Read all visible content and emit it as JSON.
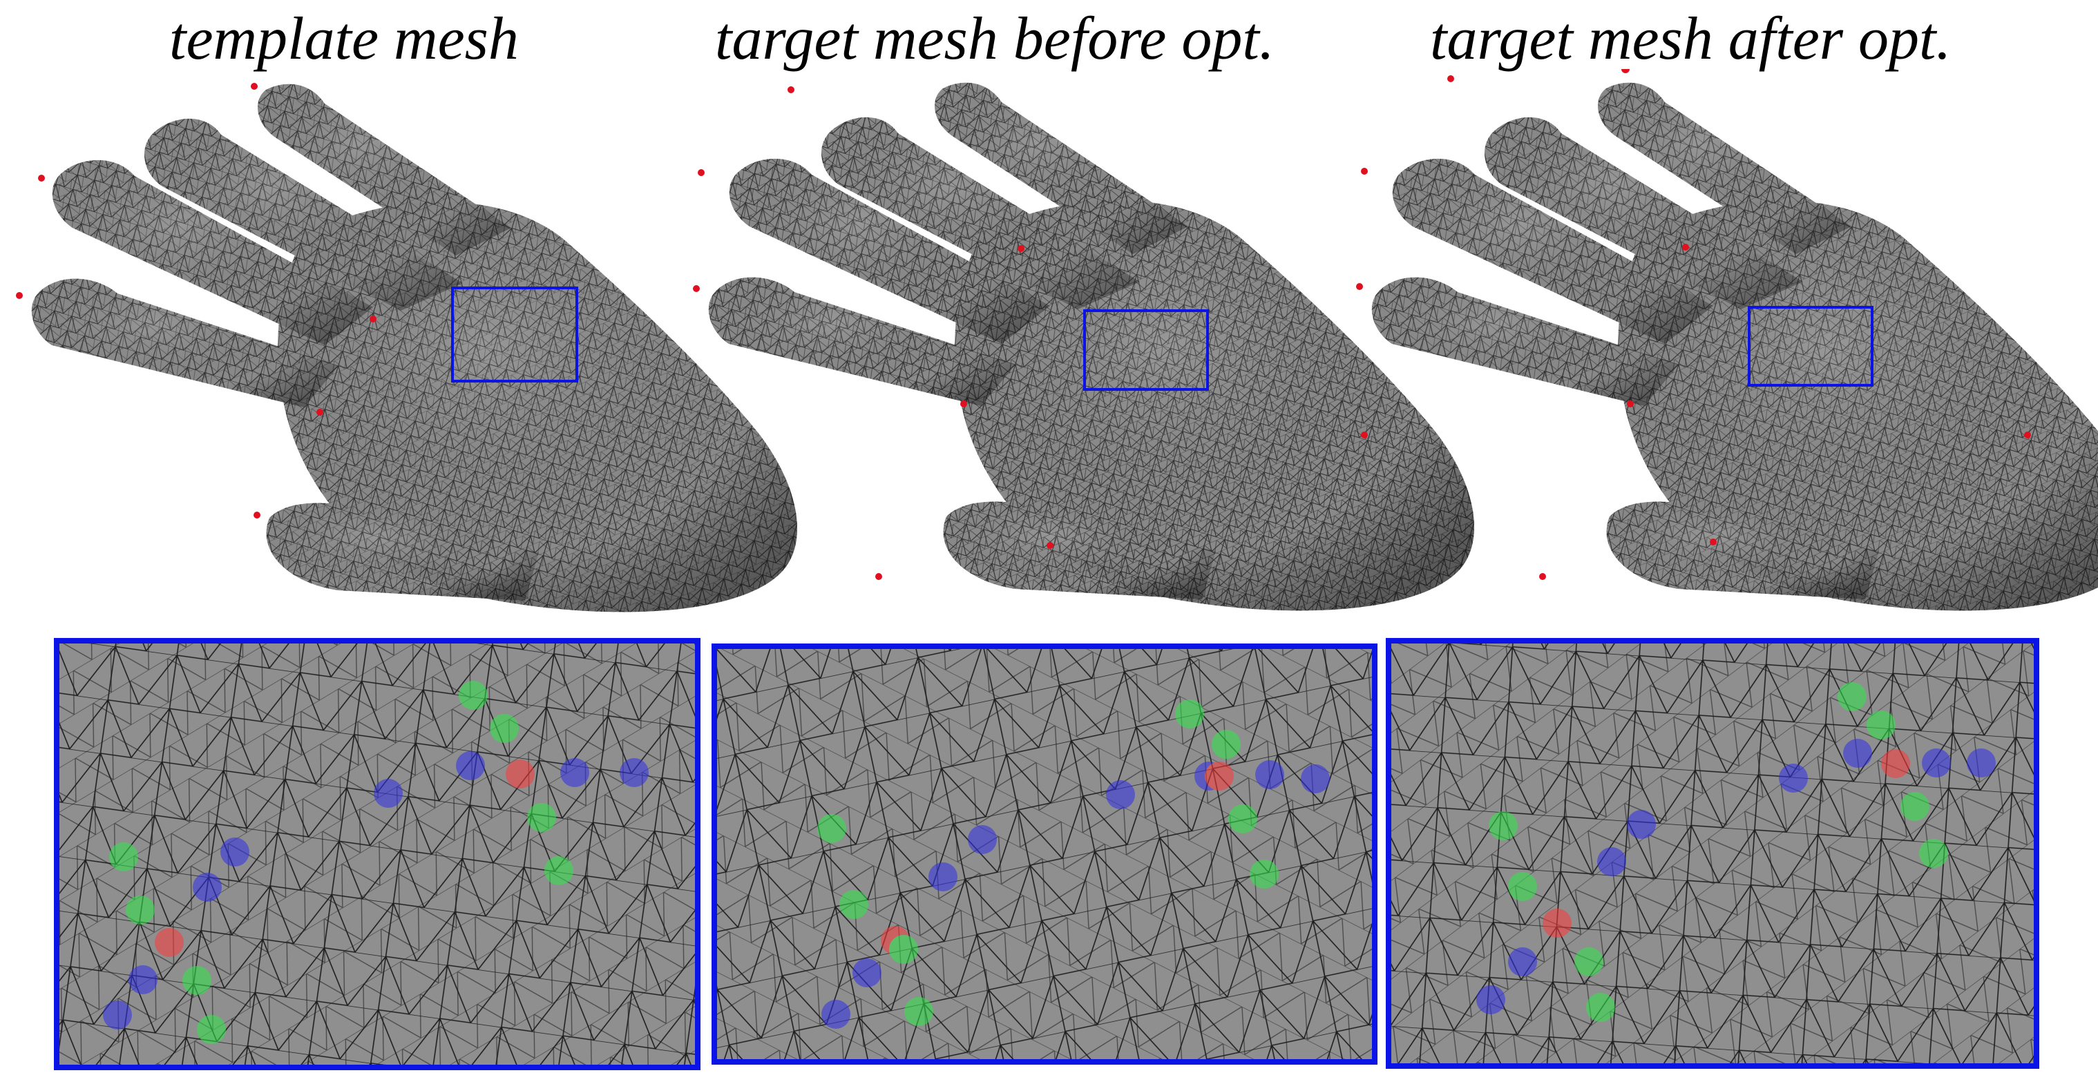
{
  "figure": {
    "titles": [
      "template mesh",
      "target mesh before opt.",
      "target mesh after opt."
    ]
  },
  "colors": {
    "mesh_fill": "#8a8a8a",
    "mesh_dark": "#3a3a3a",
    "zoom_bg": "#8f8f8f",
    "zoom_frame": "#0a14e6",
    "landmark": "#e01020",
    "dot_red": "#ff3838",
    "dot_green": "#2fe84a",
    "dot_blue": "#2f2fe8"
  }
}
